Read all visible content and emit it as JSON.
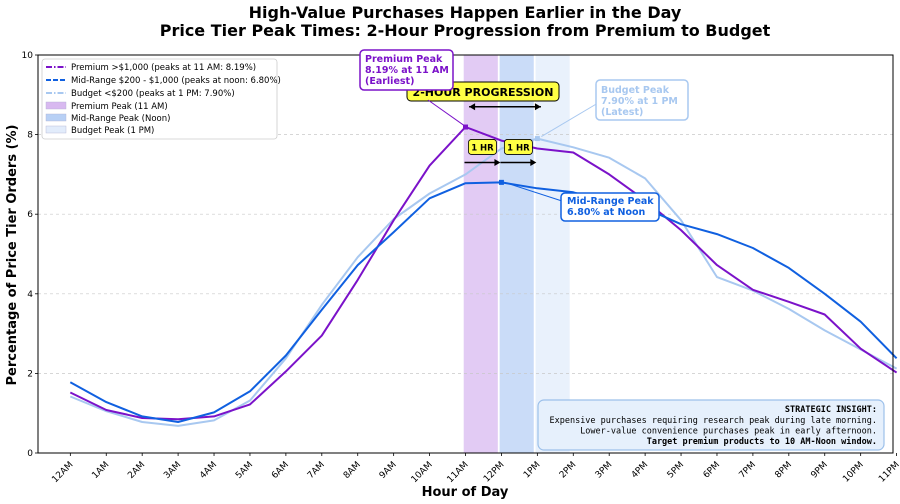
{
  "chart_data": {
    "type": "line",
    "title": "High-Value Purchases Happen Earlier in the Day",
    "subtitle": "Price Tier Peak Times: 2-Hour Progression from Premium to Budget",
    "xlabel": "Hour of Day",
    "ylabel": "Percentage of Price Tier Orders (%)",
    "ylim": [
      0,
      10
    ],
    "yticks": [
      0,
      2,
      4,
      6,
      8,
      10
    ],
    "grid": "horizontal dashed",
    "categories": [
      "12AM",
      "1AM",
      "2AM",
      "3AM",
      "4AM",
      "5AM",
      "6AM",
      "7AM",
      "8AM",
      "9AM",
      "10AM",
      "11AM",
      "12PM",
      "1PM",
      "2PM",
      "3PM",
      "4PM",
      "5PM",
      "6PM",
      "7PM",
      "8PM",
      "9PM",
      "10PM",
      "11PM"
    ],
    "series": [
      {
        "name": "Premium >$1,000 (peaks at 11 AM: 8.19%)",
        "color": "#7b12c9",
        "values": [
          1.52,
          1.08,
          0.88,
          0.85,
          0.92,
          1.22,
          2.05,
          2.95,
          4.35,
          5.85,
          7.22,
          8.19,
          7.85,
          7.65,
          7.55,
          7.0,
          6.35,
          5.6,
          4.72,
          4.1,
          3.8,
          3.48,
          2.62,
          2.02
        ]
      },
      {
        "name": "Mid-Range $200 - $1,000 (peaks at noon: 6.80%)",
        "color": "#1060e0",
        "values": [
          1.78,
          1.28,
          0.92,
          0.78,
          1.02,
          1.55,
          2.45,
          3.6,
          4.72,
          5.55,
          6.4,
          6.78,
          6.8,
          6.65,
          6.55,
          6.3,
          6.15,
          5.75,
          5.5,
          5.15,
          4.65,
          4.0,
          3.3,
          2.38
        ]
      },
      {
        "name": "Budget <$200 (peaks at 1 PM: 7.90%)",
        "color": "#a8c8f0",
        "values": [
          1.42,
          1.05,
          0.78,
          0.68,
          0.82,
          1.32,
          2.38,
          3.72,
          4.92,
          5.88,
          6.52,
          7.0,
          7.65,
          7.9,
          7.68,
          7.42,
          6.9,
          5.85,
          4.42,
          4.08,
          3.62,
          3.08,
          2.6,
          2.12
        ]
      }
    ],
    "peak_bands": [
      {
        "name": "Premium Peak (11 AM)",
        "hour": 11,
        "color": "#d8b9f0"
      },
      {
        "name": "Mid-Range Peak (Noon)",
        "hour": 12,
        "color": "#b8d0f5"
      },
      {
        "name": "Budget Peak (1 PM)",
        "hour": 13,
        "color": "#e2ecfb"
      }
    ],
    "legend_position": "top-left",
    "annotations": {
      "premium_peak": {
        "lines": [
          "Premium Peak",
          "8.19% at 11 AM",
          "(Earliest)"
        ],
        "hour": 11,
        "value": 8.19
      },
      "midrange_peak": {
        "lines": [
          "Mid-Range Peak",
          "6.80% at Noon"
        ],
        "hour": 12,
        "value": 6.8
      },
      "budget_peak": {
        "lines": [
          "Budget Peak",
          "7.90% at 1 PM",
          "(Latest)"
        ],
        "hour": 13,
        "value": 7.9
      },
      "progression_label": "2-HOUR PROGRESSION",
      "step_labels": [
        "1 HR",
        "1 HR"
      ]
    },
    "insight": {
      "heading": "STRATEGIC INSIGHT:",
      "lines": [
        "Expensive purchases requiring research peak during late morning.",
        "Lower-value convenience purchases peak in early afternoon.",
        "Target premium products to 10 AM-Noon window."
      ]
    }
  }
}
